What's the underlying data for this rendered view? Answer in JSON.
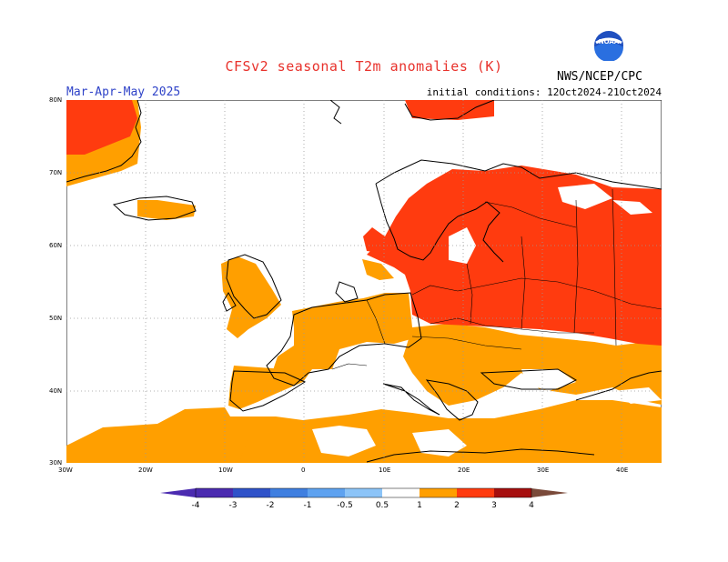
{
  "header": {
    "title": "CFSv2 seasonal T2m anomalies (K)",
    "season": "Mar-Apr-May 2025",
    "initial_conditions": "initial conditions: 12Oct2024-21Oct2024",
    "organization": "NWS/NCEP/CPC",
    "logo_text": "NOAA"
  },
  "axes": {
    "lat_labels": [
      "80N",
      "70N",
      "60N",
      "50N",
      "40N",
      "30N"
    ],
    "lon_labels": [
      "30W",
      "20W",
      "10W",
      "0",
      "10E",
      "20E",
      "30E",
      "40E"
    ]
  },
  "legend": {
    "labels": [
      "-4",
      "-3",
      "-2",
      "-1",
      "-0.5",
      "0.5",
      "1",
      "2",
      "3",
      "4"
    ],
    "colors": [
      "#4b2bb0",
      "#2f52c9",
      "#3f7fe0",
      "#5ea2f0",
      "#8cc4f8",
      "#ffffff",
      "#ff9f00",
      "#ff3b0f",
      "#a60f0f",
      "#c8a092",
      "#7a4a3a"
    ]
  },
  "map_data": {
    "colors": {
      "land_high": "#ff3b0f",
      "land_low": "#ff9f00",
      "grid": "#9a9a9a"
    },
    "scale": {
      "lon_range": [
        -30,
        45
      ],
      "lat_range": [
        30,
        80
      ]
    }
  }
}
